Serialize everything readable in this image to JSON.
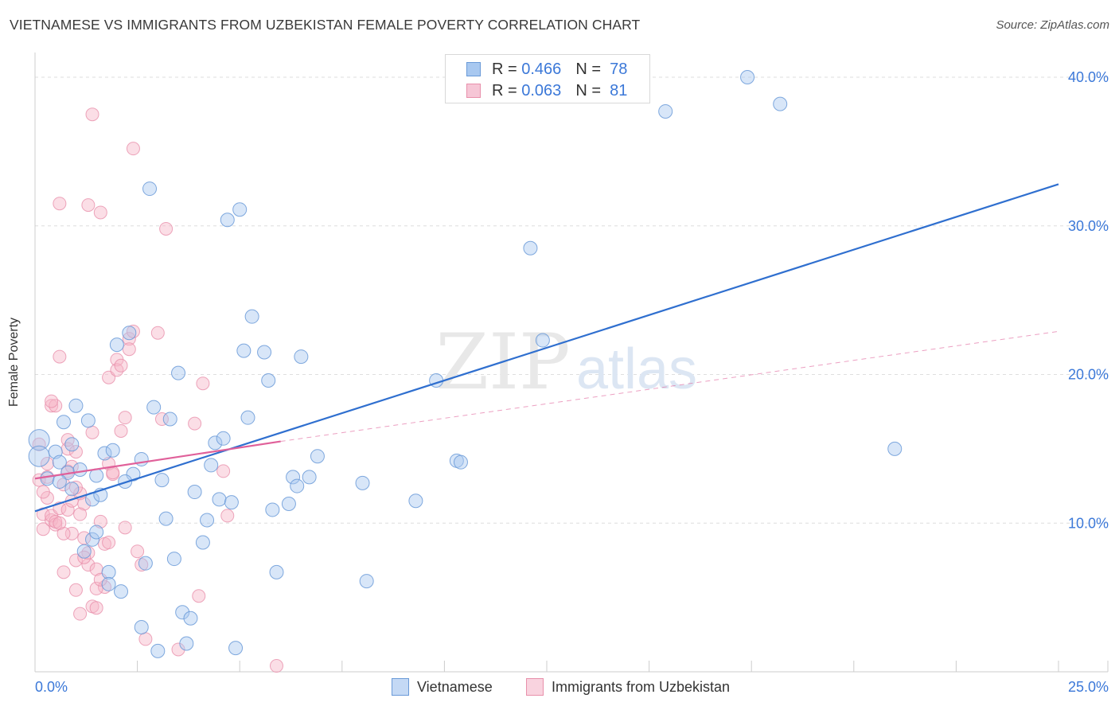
{
  "header": {
    "title": "VIETNAMESE VS IMMIGRANTS FROM UZBEKISTAN FEMALE POVERTY CORRELATION CHART",
    "source": "Source: ZipAtlas.com"
  },
  "legend_top": [
    {
      "r_label": "R =",
      "r_value": "0.466",
      "n_label": "N =",
      "n_value": "78"
    },
    {
      "r_label": "R =",
      "r_value": "0.063",
      "n_label": "N =",
      "n_value": "81"
    }
  ],
  "legend_bottom": [
    "Vietnamese",
    "Immigrants from Uzbekistan"
  ],
  "watermark": {
    "zip": "ZIP",
    "atlas": "atlas"
  },
  "colors": {
    "blue_fill": "#a8c8f0",
    "blue_stroke": "#6a9ad8",
    "blue_line": "#2f6fcf",
    "pink_fill": "#f6b6c8",
    "pink_stroke": "#e890ab",
    "pink_line": "#e0609a",
    "axis_text": "#3b78d8",
    "grid": "#dedede"
  },
  "chart_data": {
    "type": "scatter",
    "title": "VIETNAMESE VS IMMIGRANTS FROM UZBEKISTAN FEMALE POVERTY CORRELATION CHART",
    "xlabel": "",
    "ylabel": "Female Poverty",
    "xlim": [
      0,
      25
    ],
    "ylim": [
      0,
      40
    ],
    "x_tick_labels": [
      "0.0%",
      "25.0%"
    ],
    "y_ticks": [
      10,
      20,
      30,
      40
    ],
    "y_tick_labels": [
      "10.0%",
      "20.0%",
      "30.0%",
      "40.0%"
    ],
    "grid": true,
    "series": [
      {
        "name": "Vietnamese",
        "R": 0.466,
        "N": 78,
        "trend": {
          "x0": 0.0,
          "y0": 10.8,
          "x1": 25.0,
          "y1": 32.8
        },
        "points": [
          [
            0.1,
            15.6
          ],
          [
            0.1,
            14.5
          ],
          [
            0.3,
            13.0
          ],
          [
            0.5,
            14.8
          ],
          [
            0.6,
            14.1
          ],
          [
            0.7,
            16.8
          ],
          [
            0.8,
            13.4
          ],
          [
            0.9,
            12.3
          ],
          [
            1.0,
            17.9
          ],
          [
            1.1,
            13.6
          ],
          [
            1.2,
            8.1
          ],
          [
            1.3,
            16.9
          ],
          [
            1.4,
            11.6
          ],
          [
            1.4,
            8.9
          ],
          [
            1.5,
            13.2
          ],
          [
            1.6,
            11.9
          ],
          [
            1.7,
            14.7
          ],
          [
            1.8,
            6.7
          ],
          [
            1.8,
            5.9
          ],
          [
            1.9,
            14.9
          ],
          [
            2.0,
            22.0
          ],
          [
            2.1,
            5.4
          ],
          [
            2.3,
            22.8
          ],
          [
            2.4,
            13.3
          ],
          [
            2.6,
            14.3
          ],
          [
            2.6,
            3.0
          ],
          [
            2.7,
            7.3
          ],
          [
            2.8,
            32.5
          ],
          [
            2.9,
            17.8
          ],
          [
            3.0,
            1.4
          ],
          [
            3.1,
            12.9
          ],
          [
            3.2,
            10.3
          ],
          [
            3.3,
            17.0
          ],
          [
            3.4,
            7.6
          ],
          [
            3.5,
            20.1
          ],
          [
            3.6,
            4.0
          ],
          [
            3.7,
            1.9
          ],
          [
            3.8,
            3.6
          ],
          [
            3.9,
            12.1
          ],
          [
            4.1,
            8.7
          ],
          [
            4.2,
            10.2
          ],
          [
            4.3,
            13.9
          ],
          [
            4.4,
            15.4
          ],
          [
            4.5,
            11.6
          ],
          [
            4.6,
            15.7
          ],
          [
            4.7,
            30.4
          ],
          [
            4.8,
            11.4
          ],
          [
            4.9,
            1.6
          ],
          [
            5.0,
            31.1
          ],
          [
            5.1,
            21.6
          ],
          [
            5.2,
            17.1
          ],
          [
            5.3,
            23.9
          ],
          [
            5.6,
            21.5
          ],
          [
            5.7,
            19.6
          ],
          [
            5.8,
            10.9
          ],
          [
            5.9,
            6.7
          ],
          [
            6.2,
            11.3
          ],
          [
            6.3,
            13.1
          ],
          [
            6.4,
            12.5
          ],
          [
            6.5,
            21.2
          ],
          [
            6.7,
            13.1
          ],
          [
            6.9,
            14.5
          ],
          [
            8.0,
            12.7
          ],
          [
            8.1,
            6.1
          ],
          [
            9.3,
            11.5
          ],
          [
            9.8,
            19.6
          ],
          [
            10.3,
            14.2
          ],
          [
            10.4,
            14.1
          ],
          [
            12.1,
            28.5
          ],
          [
            12.4,
            22.3
          ],
          [
            15.4,
            37.7
          ],
          [
            17.4,
            40.0
          ],
          [
            18.2,
            38.2
          ],
          [
            21.0,
            15.0
          ],
          [
            0.6,
            12.8
          ],
          [
            2.2,
            12.8
          ],
          [
            1.5,
            9.4
          ],
          [
            0.9,
            15.3
          ]
        ]
      },
      {
        "name": "Immigrants from Uzbekistan",
        "R": 0.063,
        "N": 81,
        "trend_solid": {
          "x0": 0.0,
          "y0": 13.0,
          "x1": 6.0,
          "y1": 15.5
        },
        "trend_dashed": {
          "x0": 6.0,
          "y0": 15.5,
          "x1": 25.0,
          "y1": 22.9
        },
        "points": [
          [
            0.1,
            15.3
          ],
          [
            0.1,
            12.9
          ],
          [
            0.2,
            10.6
          ],
          [
            0.2,
            9.6
          ],
          [
            0.3,
            11.7
          ],
          [
            0.3,
            13.1
          ],
          [
            0.4,
            10.2
          ],
          [
            0.4,
            10.5
          ],
          [
            0.4,
            17.9
          ],
          [
            0.5,
            9.9
          ],
          [
            0.5,
            10.1
          ],
          [
            0.6,
            11.0
          ],
          [
            0.6,
            21.2
          ],
          [
            0.6,
            31.5
          ],
          [
            0.7,
            6.7
          ],
          [
            0.7,
            12.6
          ],
          [
            0.8,
            10.9
          ],
          [
            0.8,
            13.5
          ],
          [
            0.8,
            15.0
          ],
          [
            0.9,
            9.3
          ],
          [
            0.9,
            11.5
          ],
          [
            1.0,
            14.8
          ],
          [
            1.0,
            7.5
          ],
          [
            1.0,
            5.5
          ],
          [
            1.1,
            3.9
          ],
          [
            1.1,
            12.0
          ],
          [
            1.2,
            11.3
          ],
          [
            1.2,
            9.0
          ],
          [
            1.3,
            7.2
          ],
          [
            1.3,
            31.4
          ],
          [
            1.4,
            37.5
          ],
          [
            1.4,
            4.4
          ],
          [
            1.5,
            6.9
          ],
          [
            1.5,
            4.3
          ],
          [
            1.6,
            30.9
          ],
          [
            1.6,
            10.1
          ],
          [
            1.7,
            8.6
          ],
          [
            1.7,
            5.7
          ],
          [
            1.8,
            14.0
          ],
          [
            1.8,
            19.8
          ],
          [
            1.9,
            13.3
          ],
          [
            2.0,
            21.0
          ],
          [
            2.0,
            20.3
          ],
          [
            2.1,
            16.2
          ],
          [
            2.2,
            17.1
          ],
          [
            2.2,
            9.7
          ],
          [
            2.3,
            22.4
          ],
          [
            2.3,
            21.7
          ],
          [
            2.4,
            35.2
          ],
          [
            2.5,
            8.1
          ],
          [
            2.6,
            7.2
          ],
          [
            2.7,
            2.2
          ],
          [
            3.0,
            22.8
          ],
          [
            3.1,
            17.0
          ],
          [
            3.2,
            29.8
          ],
          [
            3.5,
            1.5
          ],
          [
            3.9,
            16.7
          ],
          [
            4.0,
            5.1
          ],
          [
            4.1,
            19.4
          ],
          [
            4.6,
            13.5
          ],
          [
            4.7,
            10.5
          ],
          [
            5.9,
            0.4
          ],
          [
            0.3,
            14.0
          ],
          [
            0.5,
            17.9
          ],
          [
            0.9,
            13.8
          ],
          [
            1.1,
            10.6
          ],
          [
            1.3,
            8.0
          ],
          [
            1.5,
            5.6
          ],
          [
            1.9,
            13.4
          ],
          [
            2.1,
            20.6
          ],
          [
            2.4,
            22.9
          ],
          [
            0.2,
            12.1
          ],
          [
            0.7,
            9.3
          ],
          [
            0.6,
            10.0
          ],
          [
            1.0,
            12.4
          ],
          [
            1.2,
            7.7
          ],
          [
            1.6,
            6.2
          ],
          [
            1.8,
            8.7
          ],
          [
            0.4,
            18.2
          ],
          [
            0.8,
            15.6
          ],
          [
            1.4,
            16.1
          ]
        ]
      }
    ]
  }
}
